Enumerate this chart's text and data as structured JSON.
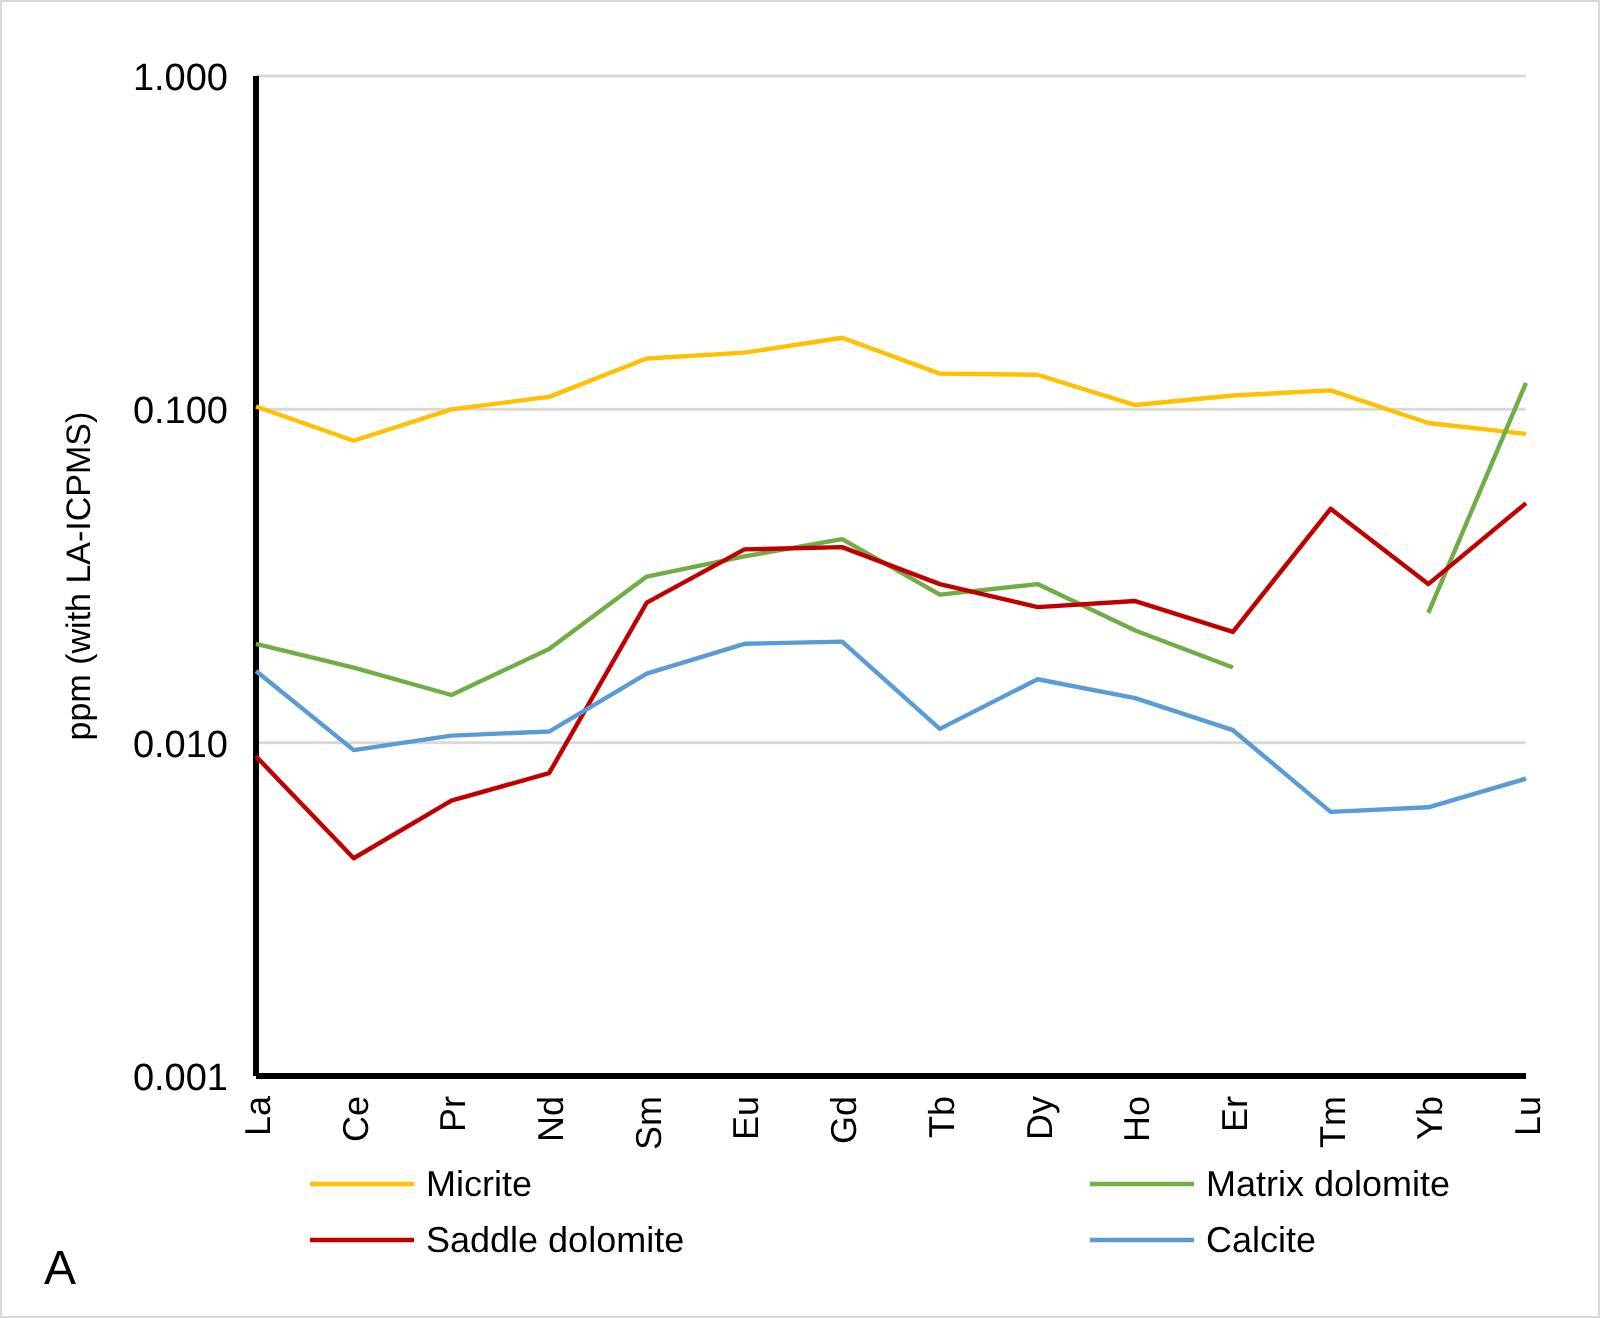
{
  "chart_data": {
    "type": "line",
    "ylabel": "ppm (with LA-ICPMS)",
    "categories": [
      "La",
      "Ce",
      "Pr",
      "Nd",
      "Sm",
      "Eu",
      "Gd",
      "Tb",
      "Dy",
      "Ho",
      "Er",
      "Tm",
      "Yb",
      "Lu"
    ],
    "series": [
      {
        "name": "Micrite",
        "color": "#ffc000",
        "values": [
          0.102,
          0.0805,
          0.1,
          0.109,
          0.142,
          0.148,
          0.164,
          0.128,
          0.127,
          0.103,
          0.11,
          0.114,
          0.091,
          0.0844
        ]
      },
      {
        "name": "Matrix dolomite",
        "color": "#70ad47",
        "values": [
          0.0198,
          0.0168,
          0.0139,
          0.0191,
          0.0315,
          0.0362,
          0.0408,
          0.0278,
          0.0299,
          0.0217,
          0.0168,
          null,
          0.0245,
          0.12
        ]
      },
      {
        "name": "Saddle dolomite",
        "color": "#c00000",
        "values": [
          0.0091,
          0.0045,
          0.0067,
          0.0081,
          0.0263,
          0.038,
          0.0386,
          0.0299,
          0.0255,
          0.0266,
          0.0215,
          0.0503,
          0.0299,
          0.0523
        ]
      },
      {
        "name": "Calcite",
        "color": "#5b9bd5",
        "values": [
          0.0164,
          0.0095,
          0.0105,
          0.0108,
          0.0161,
          0.0198,
          0.0201,
          0.011,
          0.0155,
          0.0136,
          0.0109,
          0.0062,
          0.0064,
          0.0078
        ]
      }
    ],
    "log": true,
    "ylim": [
      0.001,
      1
    ],
    "yticks": [
      {
        "value": 0.001,
        "label": "0.001"
      },
      {
        "value": 0.01,
        "label": "0.010"
      },
      {
        "value": 0.1,
        "label": "0.100"
      },
      {
        "value": 1,
        "label": "1.000"
      }
    ],
    "grid": "y",
    "legend": "bottom",
    "line_style": "solid",
    "marker": "none",
    "annotations": [
      "A"
    ]
  }
}
